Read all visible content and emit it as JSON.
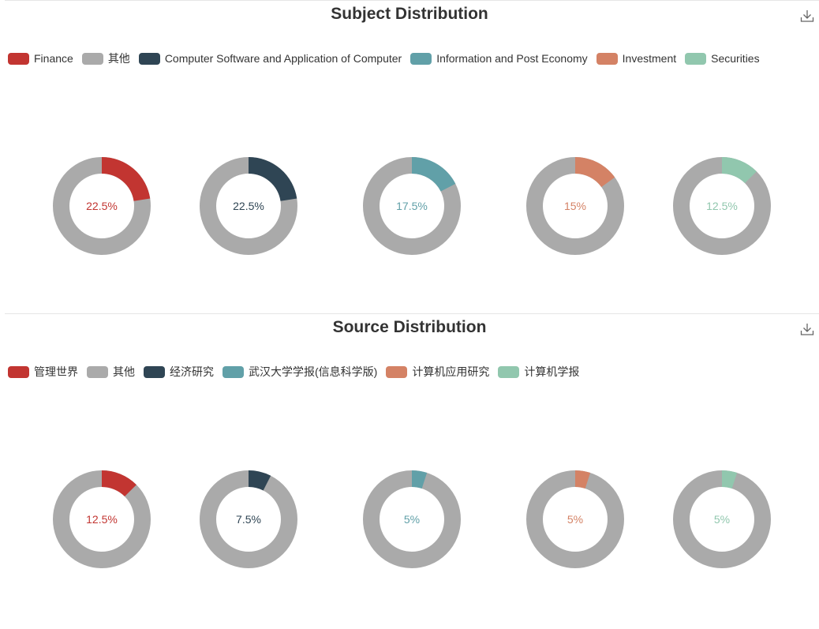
{
  "colors": {
    "other": "#aaaaaa",
    "palette": [
      "#c23531",
      "#aaaaaa",
      "#2f4554",
      "#61a0a8",
      "#d48265",
      "#91c7ae"
    ]
  },
  "icons": {
    "download": "download-icon"
  },
  "chart_data": [
    {
      "type": "pie",
      "title": "Subject Distribution",
      "legend_position": "top-left",
      "legend": [
        "Finance",
        "其他",
        "Computer Software and Application of Computer",
        "Information and Post Economy",
        "Investment",
        "Securities"
      ],
      "donuts": [
        {
          "name": "Finance",
          "value": 22.5,
          "label": "22.5%",
          "color": "#c23531"
        },
        {
          "name": "Computer Software and Application of Computer",
          "value": 22.5,
          "label": "22.5%",
          "color": "#2f4554"
        },
        {
          "name": "Information and Post Economy",
          "value": 17.5,
          "label": "17.5%",
          "color": "#61a0a8"
        },
        {
          "name": "Investment",
          "value": 15,
          "label": "15%",
          "color": "#d48265"
        },
        {
          "name": "Securities",
          "value": 12.5,
          "label": "12.5%",
          "color": "#91c7ae"
        }
      ]
    },
    {
      "type": "pie",
      "title": "Source Distribution",
      "legend_position": "top-left",
      "legend": [
        "管理世界",
        "其他",
        "经济研究",
        "武汉大学学报(信息科学版)",
        "计算机应用研究",
        "计算机学报"
      ],
      "donuts": [
        {
          "name": "管理世界",
          "value": 12.5,
          "label": "12.5%",
          "color": "#c23531"
        },
        {
          "name": "经济研究",
          "value": 7.5,
          "label": "7.5%",
          "color": "#2f4554"
        },
        {
          "name": "武汉大学学报(信息科学版)",
          "value": 5,
          "label": "5%",
          "color": "#61a0a8"
        },
        {
          "name": "计算机应用研究",
          "value": 5,
          "label": "5%",
          "color": "#d48265"
        },
        {
          "name": "计算机学报",
          "value": 5,
          "label": "5%",
          "color": "#91c7ae"
        }
      ]
    }
  ]
}
